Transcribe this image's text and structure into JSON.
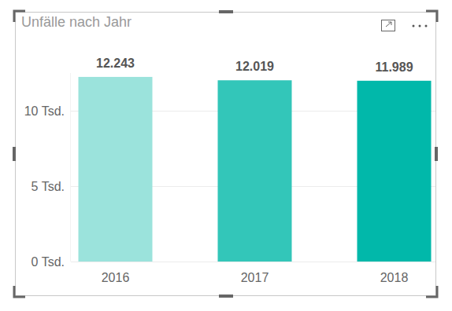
{
  "chart_data": {
    "type": "bar",
    "title": "Unfälle nach Jahr",
    "categories": [
      "2016",
      "2017",
      "2018"
    ],
    "values": [
      12243,
      12019,
      11989
    ],
    "value_labels": [
      "12.243",
      "12.019",
      "11.989"
    ],
    "colors": [
      "#9be3dc",
      "#33c6b9",
      "#01b8aa"
    ],
    "ylim": [
      0,
      12500
    ],
    "yticks": [
      {
        "value": 0,
        "label": "0 Tsd."
      },
      {
        "value": 5000,
        "label": "5 Tsd."
      },
      {
        "value": 10000,
        "label": "10 Tsd."
      }
    ],
    "grid": true,
    "data_labels": true
  }
}
